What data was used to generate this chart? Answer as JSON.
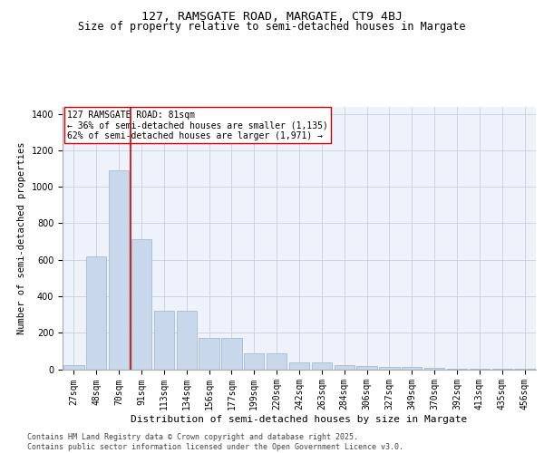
{
  "title1": "127, RAMSGATE ROAD, MARGATE, CT9 4BJ",
  "title2": "Size of property relative to semi-detached houses in Margate",
  "xlabel": "Distribution of semi-detached houses by size in Margate",
  "ylabel": "Number of semi-detached properties",
  "footer1": "Contains HM Land Registry data © Crown copyright and database right 2025.",
  "footer2": "Contains public sector information licensed under the Open Government Licence v3.0.",
  "annotation_line1": "127 RAMSGATE ROAD: 81sqm",
  "annotation_line2": "← 36% of semi-detached houses are smaller (1,135)",
  "annotation_line3": "62% of semi-detached houses are larger (1,971) →",
  "bar_color": "#c8d8ea",
  "bar_edge_color": "#9ab4cc",
  "vline_color": "#cc0000",
  "background_color": "#eef2fa",
  "fig_background": "#ffffff",
  "categories": [
    "27sqm",
    "48sqm",
    "70sqm",
    "91sqm",
    "113sqm",
    "134sqm",
    "156sqm",
    "177sqm",
    "199sqm",
    "220sqm",
    "242sqm",
    "263sqm",
    "284sqm",
    "306sqm",
    "327sqm",
    "349sqm",
    "370sqm",
    "392sqm",
    "413sqm",
    "435sqm",
    "456sqm"
  ],
  "values": [
    22,
    620,
    1090,
    715,
    320,
    320,
    170,
    170,
    85,
    85,
    38,
    38,
    22,
    18,
    10,
    10,
    7,
    4,
    4,
    2,
    2
  ],
  "ylim": [
    0,
    1440
  ],
  "yticks": [
    0,
    200,
    400,
    600,
    800,
    1000,
    1200,
    1400
  ],
  "vline_x": 2.5,
  "title1_fontsize": 9.5,
  "title2_fontsize": 8.5,
  "xlabel_fontsize": 8,
  "ylabel_fontsize": 7.5,
  "tick_fontsize": 7,
  "annot_fontsize": 7,
  "footer_fontsize": 6
}
